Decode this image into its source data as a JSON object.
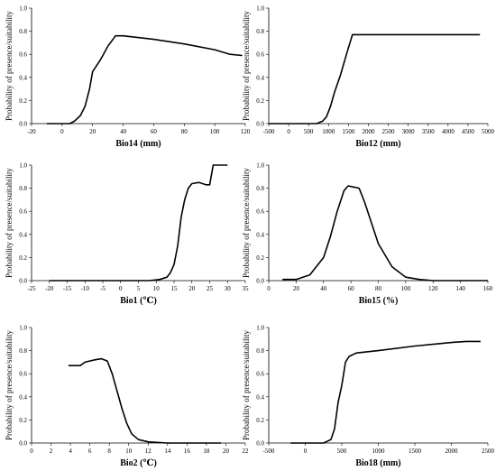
{
  "chart_data": [
    {
      "type": "line",
      "xlabel": "Bio14 (mm)",
      "ylabel": "Probability of presence/suitability",
      "xlim": [
        -20,
        120
      ],
      "ylim": [
        0,
        1.0
      ],
      "xticks": [
        -20,
        0,
        20,
        40,
        60,
        80,
        100,
        120
      ],
      "yticks": [
        "0.0",
        "0.2",
        "0.4",
        "0.6",
        "0.8",
        "1.0"
      ],
      "series": [
        {
          "x": [
            -10,
            5,
            8,
            12,
            15,
            18,
            20,
            25,
            30,
            35,
            40,
            60,
            80,
            100,
            110,
            118
          ],
          "y": [
            0.0,
            0.0,
            0.02,
            0.07,
            0.15,
            0.3,
            0.45,
            0.55,
            0.67,
            0.76,
            0.76,
            0.73,
            0.69,
            0.64,
            0.6,
            0.59
          ]
        }
      ]
    },
    {
      "type": "line",
      "xlabel": "Bio12 (mm)",
      "ylabel": "Probability of presence/suitability",
      "xlim": [
        -500,
        5000
      ],
      "ylim": [
        0,
        1.0
      ],
      "xticks": [
        -500,
        0,
        500,
        1000,
        1500,
        2000,
        2500,
        3000,
        3500,
        4000,
        4500,
        5000
      ],
      "yticks": [
        "0.0",
        "0.2",
        "0.4",
        "0.6",
        "0.8",
        "1.0"
      ],
      "series": [
        {
          "x": [
            -500,
            700,
            850,
            950,
            1050,
            1150,
            1300,
            1450,
            1600,
            2500,
            4800
          ],
          "y": [
            0.0,
            0.0,
            0.02,
            0.06,
            0.15,
            0.27,
            0.42,
            0.6,
            0.77,
            0.77,
            0.77
          ]
        }
      ]
    },
    {
      "type": "line",
      "xlabel": "Bio1 (℃)",
      "ylabel": "Probability of presence/suitability",
      "xlim": [
        -25,
        35
      ],
      "ylim": [
        0,
        1.0
      ],
      "xticks": [
        -25,
        -20,
        -15,
        -10,
        -5,
        0,
        5,
        10,
        15,
        20,
        25,
        30,
        35
      ],
      "yticks": [
        "0.0",
        "0.2",
        "0.4",
        "0.6",
        "0.8",
        "1.0"
      ],
      "series": [
        {
          "x": [
            -20,
            8,
            11,
            13,
            14,
            15,
            16,
            17,
            18,
            19,
            20,
            22,
            24,
            25,
            26,
            27,
            30
          ],
          "y": [
            0.0,
            0.0,
            0.01,
            0.03,
            0.07,
            0.14,
            0.3,
            0.55,
            0.7,
            0.8,
            0.84,
            0.85,
            0.83,
            0.83,
            1.0,
            1.0,
            1.0
          ]
        }
      ]
    },
    {
      "type": "line",
      "xlabel": "Bio15 (%)",
      "ylabel": "Probability of presence/suitability",
      "xlim": [
        0,
        160
      ],
      "ylim": [
        0,
        1.0
      ],
      "xticks": [
        0,
        20,
        40,
        60,
        80,
        100,
        120,
        140,
        160
      ],
      "yticks": [
        "0.0",
        "0.2",
        "0.4",
        "0.6",
        "0.8",
        "1.0"
      ],
      "series": [
        {
          "x": [
            10,
            20,
            30,
            40,
            45,
            50,
            55,
            58,
            62,
            66,
            70,
            75,
            80,
            90,
            100,
            110,
            120,
            140,
            160
          ],
          "y": [
            0.01,
            0.01,
            0.05,
            0.2,
            0.38,
            0.6,
            0.78,
            0.82,
            0.81,
            0.8,
            0.68,
            0.5,
            0.32,
            0.12,
            0.03,
            0.01,
            0.0,
            0.0,
            0.0
          ]
        }
      ]
    },
    {
      "type": "line",
      "xlabel": "Bio2 (℃)",
      "ylabel": "Probability of presence/suitability",
      "xlim": [
        0,
        22
      ],
      "ylim": [
        0,
        1.0
      ],
      "xticks": [
        0,
        2,
        4,
        6,
        8,
        10,
        12,
        14,
        16,
        18,
        20,
        22
      ],
      "yticks": [
        "0.0",
        "0.2",
        "0.4",
        "0.6",
        "0.8",
        "1.0"
      ],
      "series": [
        {
          "x": [
            3.8,
            5.0,
            5.5,
            6.5,
            7.2,
            7.8,
            8.3,
            8.8,
            9.3,
            9.8,
            10.3,
            11,
            12,
            14,
            16,
            19.5
          ],
          "y": [
            0.67,
            0.67,
            0.7,
            0.72,
            0.73,
            0.71,
            0.6,
            0.45,
            0.3,
            0.17,
            0.08,
            0.03,
            0.01,
            0.0,
            0.0,
            0.0
          ]
        }
      ]
    },
    {
      "type": "line",
      "xlabel": "Bio18 (mm)",
      "ylabel": "Probability of presence/suitability",
      "xlim": [
        -500,
        2500
      ],
      "ylim": [
        0,
        1.0
      ],
      "xticks": [
        -500,
        0,
        500,
        1000,
        1500,
        2000,
        2500
      ],
      "yticks": [
        "0.0",
        "0.2",
        "0.4",
        "0.6",
        "0.8",
        "1.0"
      ],
      "series": [
        {
          "x": [
            -200,
            250,
            350,
            400,
            450,
            500,
            550,
            600,
            700,
            1000,
            1500,
            2000,
            2200,
            2400
          ],
          "y": [
            0.0,
            0.0,
            0.03,
            0.12,
            0.35,
            0.5,
            0.7,
            0.75,
            0.78,
            0.8,
            0.84,
            0.87,
            0.88,
            0.88
          ]
        }
      ]
    }
  ]
}
